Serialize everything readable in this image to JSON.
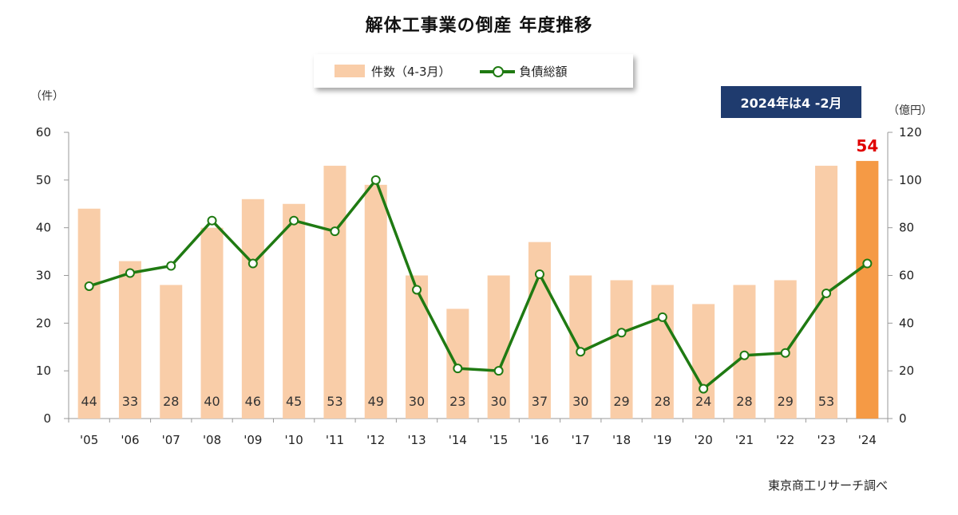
{
  "title": "解体工事業の倒産 年度推移",
  "legend": {
    "bars": "件数（4-3月）",
    "line": "負債総額"
  },
  "note": "2024年は4 -2月",
  "left_unit": "（件）",
  "right_unit": "（億円）",
  "source": "東京商工リサーチ調べ",
  "colors": {
    "bar": "#f9cda8",
    "bar_highlight": "#f59a45",
    "line": "#1f7a12",
    "highlight_label": "#e00000",
    "note_bg": "#1f3b6e"
  },
  "chart_data": {
    "type": "bar",
    "categories": [
      "'05",
      "'06",
      "'07",
      "'08",
      "'09",
      "'10",
      "'11",
      "'12",
      "'13",
      "'14",
      "'15",
      "'16",
      "'17",
      "'18",
      "'19",
      "'20",
      "'21",
      "'22",
      "'23",
      "'24"
    ],
    "series": [
      {
        "name": "件数（4-3月）",
        "type": "bar",
        "axis": "left",
        "values": [
          44,
          33,
          28,
          40,
          46,
          45,
          53,
          49,
          30,
          23,
          30,
          37,
          30,
          29,
          28,
          24,
          28,
          29,
          53,
          54
        ]
      },
      {
        "name": "負債総額",
        "type": "line",
        "axis": "right",
        "values": [
          55.5,
          61,
          64,
          83,
          65,
          83,
          78.5,
          100,
          54,
          21,
          20,
          60.5,
          28,
          36,
          42.5,
          12.5,
          26.5,
          27.5,
          52.5,
          65
        ]
      }
    ],
    "y_left": {
      "min": 0,
      "max": 60,
      "ticks": [
        0,
        10,
        20,
        30,
        40,
        50,
        60
      ]
    },
    "y_right": {
      "min": 0,
      "max": 120,
      "ticks": [
        0,
        20,
        40,
        60,
        80,
        100,
        120
      ]
    },
    "highlight_index": 19,
    "highlight_label": "54",
    "grid": false,
    "legend_position": "top-center"
  }
}
